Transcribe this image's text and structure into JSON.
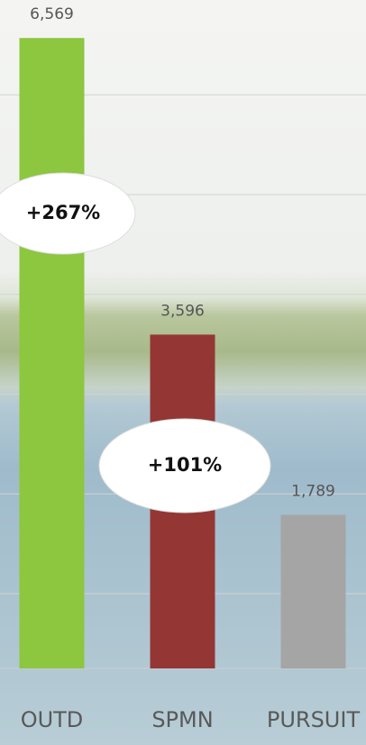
{
  "chart_data": {
    "type": "bar",
    "categories": [
      "OUTD",
      "SPMN",
      "PURSUIT"
    ],
    "values": [
      6569,
      3596,
      1789
    ],
    "value_labels": [
      "6,569",
      "3,596",
      "1,789"
    ],
    "colors": [
      "#8dc63f",
      "#943634",
      "#a5a5a5"
    ],
    "ylim": [
      250,
      6950
    ],
    "yticks": [
      1000,
      2000,
      3000,
      4000,
      5000,
      6000
    ],
    "grid": true,
    "annotations": [
      {
        "text": "+267%"
      },
      {
        "text": "+101%"
      }
    ]
  }
}
